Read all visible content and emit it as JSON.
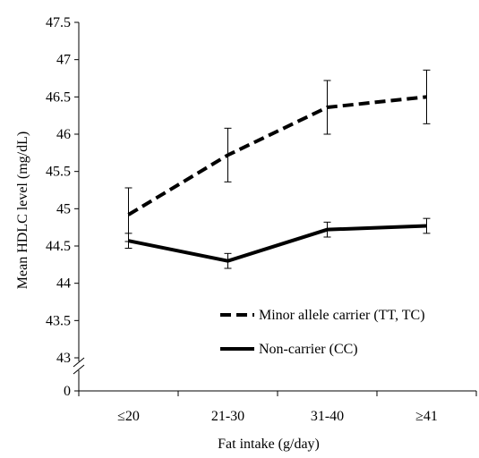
{
  "chart_data": {
    "type": "line",
    "title": "",
    "xlabel": "Fat intake (g/day)",
    "ylabel": "Mean HDLC level (mg/dL)",
    "categories": [
      "≤20",
      "21-30",
      "31-40",
      "≥41"
    ],
    "ylim": [
      43,
      47.5
    ],
    "yticks": [
      {
        "value": 47.5,
        "label": "47.5"
      },
      {
        "value": 47,
        "label": "47"
      },
      {
        "value": 46.5,
        "label": "46.5"
      },
      {
        "value": 46,
        "label": "46"
      },
      {
        "value": 45.5,
        "label": "45.5"
      },
      {
        "value": 45,
        "label": "45"
      },
      {
        "value": 44.5,
        "label": "44.5"
      },
      {
        "value": 44,
        "label": "44"
      },
      {
        "value": 43.5,
        "label": "43.5"
      },
      {
        "value": 43,
        "label": "43"
      }
    ],
    "axis_break": true,
    "baseline_label": "0",
    "grid": false,
    "legend_position": "bottom-right",
    "series": [
      {
        "name": "Minor allele carrier (TT, TC)",
        "style": "dashed",
        "color": "#000000",
        "values": [
          44.92,
          45.72,
          46.36,
          46.5
        ],
        "errors": [
          0.36,
          0.36,
          0.36,
          0.36
        ]
      },
      {
        "name": "Non-carrier (CC)",
        "style": "solid",
        "color": "#000000",
        "values": [
          44.57,
          44.3,
          44.72,
          44.77
        ],
        "errors": [
          0.1,
          0.1,
          0.1,
          0.1
        ]
      }
    ]
  }
}
